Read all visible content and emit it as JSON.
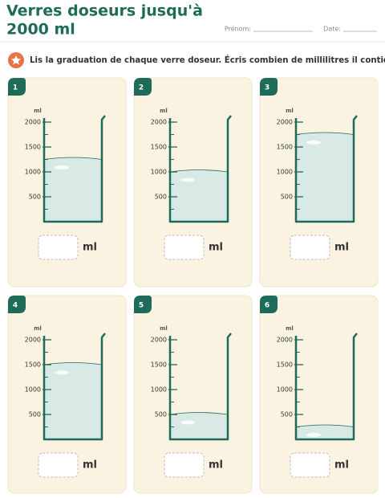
{
  "header": {
    "title_line1": "Verres doseurs jusqu'à",
    "title_line2": "2000 ml",
    "name_label": "Prénom:",
    "date_label": "Date:"
  },
  "instruction": "Lis la graduation de chaque verre doseur. Écris combien de millilitres il contient.",
  "scale": {
    "unit": "ml",
    "ylim": [
      0,
      2000
    ],
    "ticks": [
      500,
      1000,
      1500,
      2000
    ]
  },
  "answer_unit": "ml",
  "cards": [
    {
      "number": "1",
      "level": 1250
    },
    {
      "number": "2",
      "level": 1000
    },
    {
      "number": "3",
      "level": 1750
    },
    {
      "number": "4",
      "level": 1500
    },
    {
      "number": "5",
      "level": 500
    },
    {
      "number": "6",
      "level": 250
    }
  ]
}
